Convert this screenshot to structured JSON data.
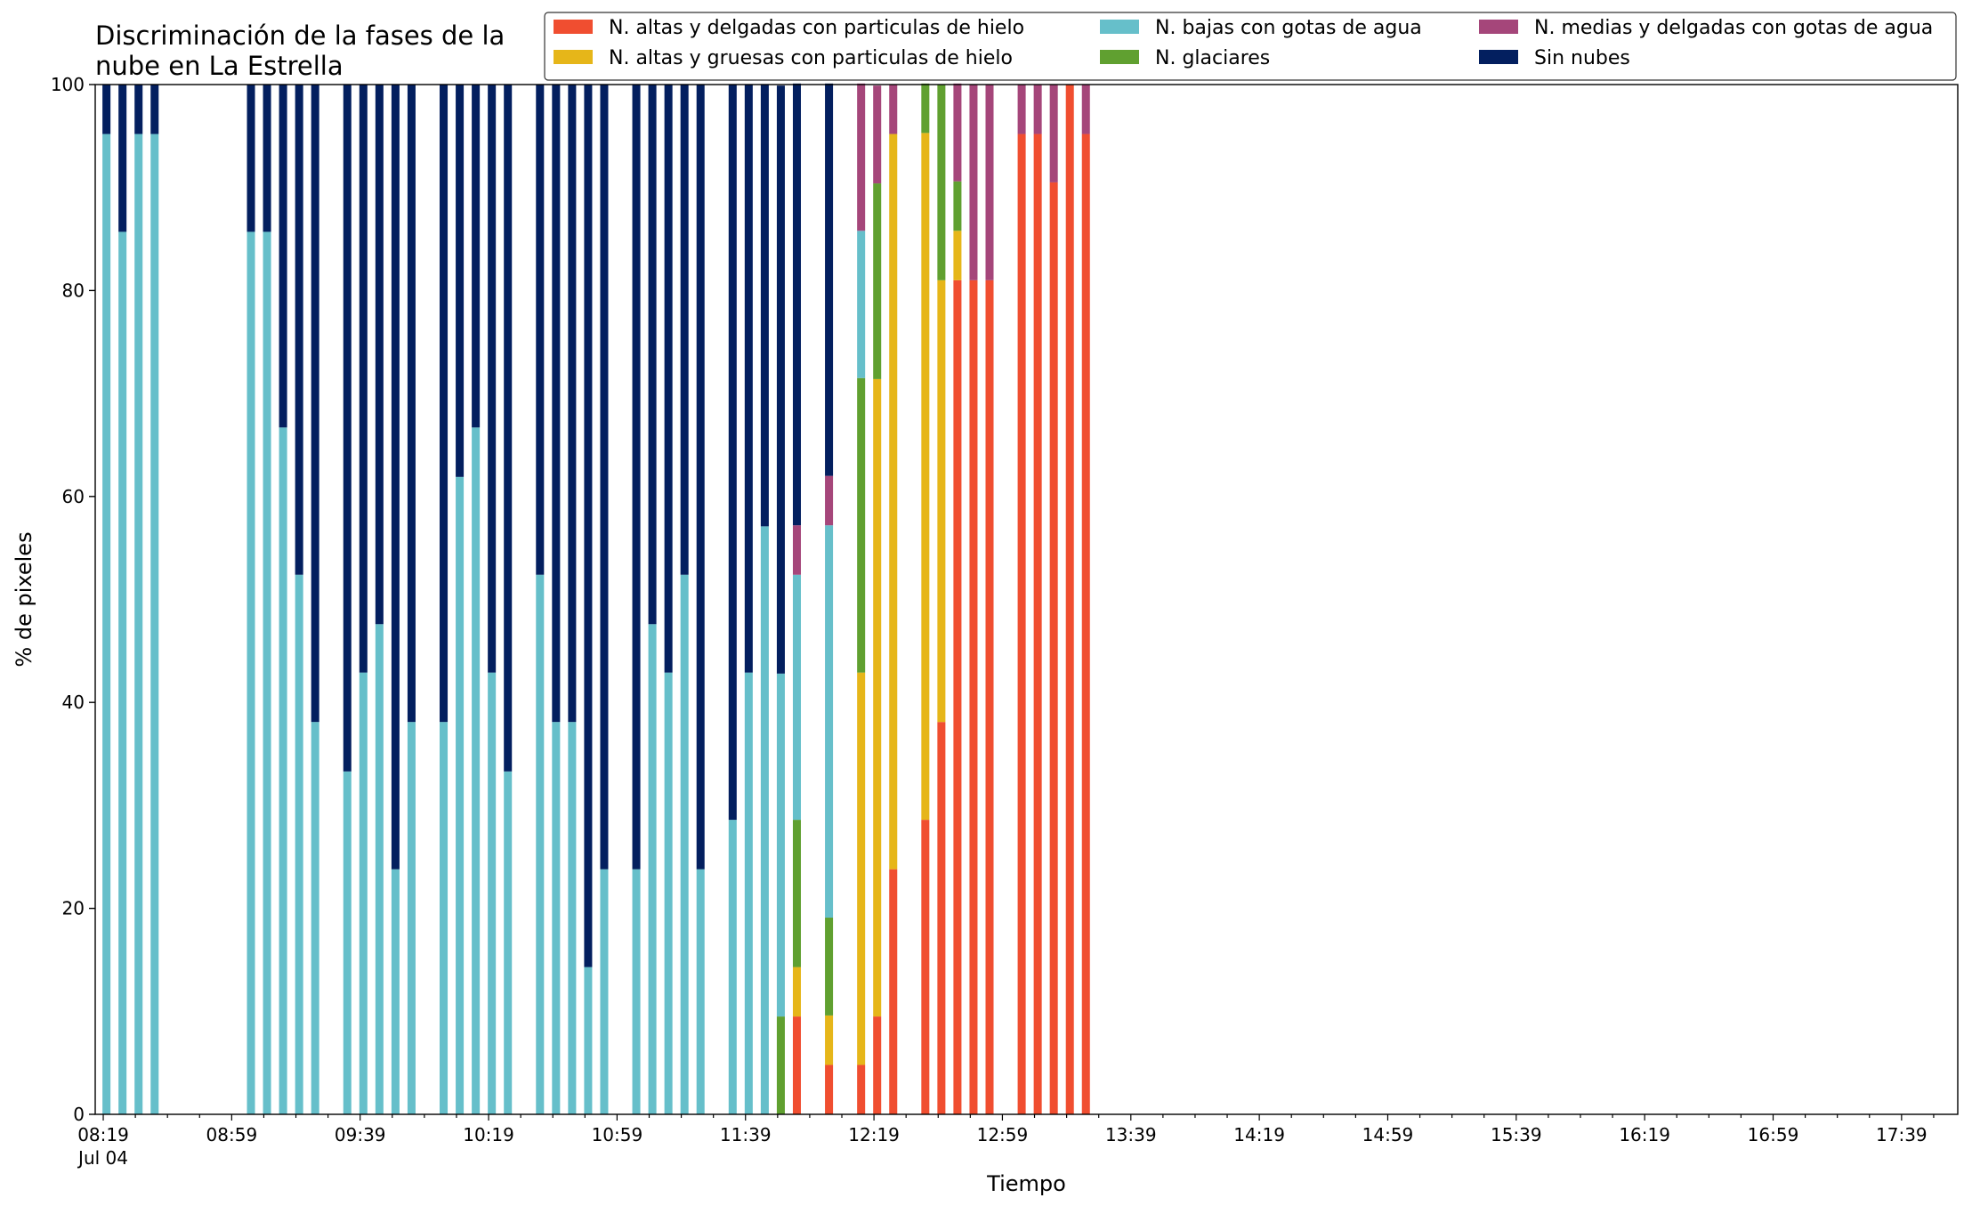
{
  "chart_data": {
    "type": "bar",
    "stacked": true,
    "title_lines": [
      "Discriminación de la fases de la",
      "nube en La Estrella"
    ],
    "xlabel": "Tiempo",
    "ylabel": "% de pixeles",
    "ylim": [
      0,
      100
    ],
    "yticks": [
      "0",
      "20",
      "40",
      "60",
      "80",
      "100"
    ],
    "xtick_labels": [
      "08:19",
      "08:59",
      "09:39",
      "10:19",
      "10:59",
      "11:39",
      "12:19",
      "12:59",
      "13:39",
      "14:19",
      "14:59",
      "15:39",
      "16:19",
      "16:59",
      "17:39"
    ],
    "x_date_label": "Jul 04",
    "grid": false,
    "legend_position": "top-right",
    "legend": [
      "N. altas y delgadas con particulas de hielo",
      "N. bajas con gotas de agua",
      "N. medias y delgadas con gotas de agua",
      "N. altas y gruesas con particulas de hielo",
      "N. glaciares",
      "Sin nubes"
    ],
    "series_colors": {
      "altas_delgadas": "#f04e30",
      "altas_gruesas": "#e6b619",
      "glaciares": "#60a030",
      "bajas": "#66bfca",
      "medias": "#a5467a",
      "sin_nubes": "#031f5f"
    },
    "times": [
      "08:19",
      "08:24",
      "08:29",
      "08:34",
      "08:39",
      "08:44",
      "08:49",
      "08:54",
      "08:59",
      "09:04",
      "09:09",
      "09:14",
      "09:19",
      "09:24",
      "09:29",
      "09:34",
      "09:39",
      "09:44",
      "09:49",
      "09:54",
      "09:59",
      "10:04",
      "10:09",
      "10:14",
      "10:19",
      "10:24",
      "10:29",
      "10:34",
      "10:39",
      "10:44",
      "10:49",
      "10:54",
      "10:59",
      "11:04",
      "11:09",
      "11:14",
      "11:19",
      "11:24",
      "11:29",
      "11:34",
      "11:39",
      "11:44",
      "11:49",
      "11:54",
      "11:59",
      "12:04",
      "12:09",
      "12:14",
      "12:19",
      "12:24",
      "12:29",
      "12:34",
      "12:39",
      "12:44",
      "12:49",
      "12:54",
      "12:59",
      "13:04",
      "13:09",
      "13:14",
      "13:19",
      "13:24",
      "13:29",
      "13:34",
      "13:39",
      "13:44",
      "13:49",
      "13:54",
      "13:59",
      "14:04",
      "14:09",
      "14:14",
      "14:19",
      "14:24",
      "14:29",
      "14:34",
      "14:39",
      "14:44",
      "14:49",
      "14:54",
      "14:59",
      "15:04",
      "15:09",
      "15:14",
      "15:19",
      "15:24",
      "15:29",
      "15:34",
      "15:39",
      "15:44",
      "15:49",
      "15:54",
      "15:59",
      "16:04",
      "16:09",
      "16:14",
      "16:19",
      "16:24",
      "16:29",
      "16:34",
      "16:39",
      "16:44",
      "16:49",
      "16:54",
      "16:59",
      "17:04",
      "17:09",
      "17:14",
      "17:19",
      "17:24",
      "17:29",
      "17:34",
      "17:39",
      "17:44",
      "17:49",
      "17:54"
    ],
    "order": [
      "altas_delgadas",
      "altas_gruesas",
      "glaciares",
      "bajas",
      "medias",
      "sin_nubes"
    ],
    "bars": [
      {
        "time": "08:20",
        "altas_delgadas": 0,
        "altas_gruesas": 0,
        "glaciares": 0,
        "bajas": 95.2,
        "medias": 0,
        "sin_nubes": 4.8
      },
      {
        "time": "08:25",
        "altas_delgadas": 0,
        "altas_gruesas": 0,
        "glaciares": 0,
        "bajas": 85.7,
        "medias": 0,
        "sin_nubes": 14.3
      },
      {
        "time": "08:30",
        "altas_delgadas": 0,
        "altas_gruesas": 0,
        "glaciares": 0,
        "bajas": 95.2,
        "medias": 0,
        "sin_nubes": 4.8
      },
      {
        "time": "08:35",
        "altas_delgadas": 0,
        "altas_gruesas": 0,
        "glaciares": 0,
        "bajas": 95.2,
        "medias": 0,
        "sin_nubes": 4.8
      },
      {
        "time": "09:05",
        "altas_delgadas": 0,
        "altas_gruesas": 0,
        "glaciares": 0,
        "bajas": 85.7,
        "medias": 0,
        "sin_nubes": 14.3
      },
      {
        "time": "09:10",
        "altas_delgadas": 0,
        "altas_gruesas": 0,
        "glaciares": 0,
        "bajas": 85.7,
        "medias": 0,
        "sin_nubes": 14.3
      },
      {
        "time": "09:15",
        "altas_delgadas": 0,
        "altas_gruesas": 0,
        "glaciares": 0,
        "bajas": 66.7,
        "medias": 0,
        "sin_nubes": 33.3
      },
      {
        "time": "09:20",
        "altas_delgadas": 0,
        "altas_gruesas": 0,
        "glaciares": 0,
        "bajas": 52.4,
        "medias": 0,
        "sin_nubes": 47.6
      },
      {
        "time": "09:25",
        "altas_delgadas": 0,
        "altas_gruesas": 0,
        "glaciares": 0,
        "bajas": 38.1,
        "medias": 0,
        "sin_nubes": 61.9
      },
      {
        "time": "09:35",
        "altas_delgadas": 0,
        "altas_gruesas": 0,
        "glaciares": 0,
        "bajas": 33.3,
        "medias": 0,
        "sin_nubes": 66.7
      },
      {
        "time": "09:40",
        "altas_delgadas": 0,
        "altas_gruesas": 0,
        "glaciares": 0,
        "bajas": 42.9,
        "medias": 0,
        "sin_nubes": 57.1
      },
      {
        "time": "09:45",
        "altas_delgadas": 0,
        "altas_gruesas": 0,
        "glaciares": 0,
        "bajas": 47.6,
        "medias": 0,
        "sin_nubes": 52.4
      },
      {
        "time": "09:50",
        "altas_delgadas": 0,
        "altas_gruesas": 0,
        "glaciares": 0,
        "bajas": 23.8,
        "medias": 0,
        "sin_nubes": 76.2
      },
      {
        "time": "09:55",
        "altas_delgadas": 0,
        "altas_gruesas": 0,
        "glaciares": 0,
        "bajas": 38.1,
        "medias": 0,
        "sin_nubes": 61.9
      },
      {
        "time": "10:05",
        "altas_delgadas": 0,
        "altas_gruesas": 0,
        "glaciares": 0,
        "bajas": 38.1,
        "medias": 0,
        "sin_nubes": 61.9
      },
      {
        "time": "10:10",
        "altas_delgadas": 0,
        "altas_gruesas": 0,
        "glaciares": 0,
        "bajas": 61.9,
        "medias": 0,
        "sin_nubes": 38.1
      },
      {
        "time": "10:15",
        "altas_delgadas": 0,
        "altas_gruesas": 0,
        "glaciares": 0,
        "bajas": 66.7,
        "medias": 0,
        "sin_nubes": 33.3
      },
      {
        "time": "10:20",
        "altas_delgadas": 0,
        "altas_gruesas": 0,
        "glaciares": 0,
        "bajas": 42.9,
        "medias": 0,
        "sin_nubes": 57.1
      },
      {
        "time": "10:25",
        "altas_delgadas": 0,
        "altas_gruesas": 0,
        "glaciares": 0,
        "bajas": 33.3,
        "medias": 0,
        "sin_nubes": 66.7
      },
      {
        "time": "10:35",
        "altas_delgadas": 0,
        "altas_gruesas": 0,
        "glaciares": 0,
        "bajas": 52.4,
        "medias": 0,
        "sin_nubes": 47.6
      },
      {
        "time": "10:40",
        "altas_delgadas": 0,
        "altas_gruesas": 0,
        "glaciares": 0,
        "bajas": 38.1,
        "medias": 0,
        "sin_nubes": 61.9
      },
      {
        "time": "10:45",
        "altas_delgadas": 0,
        "altas_gruesas": 0,
        "glaciares": 0,
        "bajas": 38.1,
        "medias": 0,
        "sin_nubes": 61.9
      },
      {
        "time": "10:50",
        "altas_delgadas": 0,
        "altas_gruesas": 0,
        "glaciares": 0,
        "bajas": 14.3,
        "medias": 0,
        "sin_nubes": 85.7
      },
      {
        "time": "10:55",
        "altas_delgadas": 0,
        "altas_gruesas": 0,
        "glaciares": 0,
        "bajas": 23.8,
        "medias": 0,
        "sin_nubes": 76.2
      },
      {
        "time": "11:05",
        "altas_delgadas": 0,
        "altas_gruesas": 0,
        "glaciares": 0,
        "bajas": 23.8,
        "medias": 0,
        "sin_nubes": 76.2
      },
      {
        "time": "11:10",
        "altas_delgadas": 0,
        "altas_gruesas": 0,
        "glaciares": 0,
        "bajas": 47.6,
        "medias": 0,
        "sin_nubes": 52.4
      },
      {
        "time": "11:15",
        "altas_delgadas": 0,
        "altas_gruesas": 0,
        "glaciares": 0,
        "bajas": 42.9,
        "medias": 0,
        "sin_nubes": 57.1
      },
      {
        "time": "11:20",
        "altas_delgadas": 0,
        "altas_gruesas": 0,
        "glaciares": 0,
        "bajas": 52.4,
        "medias": 0,
        "sin_nubes": 47.6
      },
      {
        "time": "11:25",
        "altas_delgadas": 0,
        "altas_gruesas": 0,
        "glaciares": 0,
        "bajas": 23.8,
        "medias": 0,
        "sin_nubes": 76.2
      },
      {
        "time": "11:35",
        "altas_delgadas": 0,
        "altas_gruesas": 0,
        "glaciares": 0,
        "bajas": 28.6,
        "medias": 0,
        "sin_nubes": 71.4
      },
      {
        "time": "11:40",
        "altas_delgadas": 0,
        "altas_gruesas": 0,
        "glaciares": 0,
        "bajas": 42.9,
        "medias": 0,
        "sin_nubes": 57.1
      },
      {
        "time": "11:45",
        "altas_delgadas": 0,
        "altas_gruesas": 0,
        "glaciares": 0,
        "bajas": 57.1,
        "medias": 0,
        "sin_nubes": 42.9
      },
      {
        "time": "11:50",
        "altas_delgadas": 0,
        "altas_gruesas": 0,
        "glaciares": 9.5,
        "bajas": 33.3,
        "medias": 0,
        "sin_nubes": 57.1
      },
      {
        "time": "11:55",
        "altas_delgadas": 9.5,
        "altas_gruesas": 4.8,
        "glaciares": 14.3,
        "bajas": 23.8,
        "medias": 4.8,
        "sin_nubes": 42.9
      },
      {
        "time": "12:05",
        "altas_delgadas": 4.8,
        "altas_gruesas": 4.8,
        "glaciares": 9.5,
        "bajas": 38.1,
        "medias": 4.8,
        "sin_nubes": 38.1
      },
      {
        "time": "12:15",
        "altas_delgadas": 4.8,
        "altas_gruesas": 38.1,
        "glaciares": 28.6,
        "bajas": 14.3,
        "medias": 14.3,
        "sin_nubes": 0
      },
      {
        "time": "12:20",
        "altas_delgadas": 9.5,
        "altas_gruesas": 61.9,
        "glaciares": 19.0,
        "bajas": 0,
        "medias": 9.5,
        "sin_nubes": 0
      },
      {
        "time": "12:25",
        "altas_delgadas": 23.8,
        "altas_gruesas": 71.4,
        "glaciares": 0,
        "bajas": 0,
        "medias": 4.8,
        "sin_nubes": 0
      },
      {
        "time": "12:35",
        "altas_delgadas": 28.6,
        "altas_gruesas": 66.7,
        "glaciares": 4.8,
        "bajas": 0,
        "medias": 0,
        "sin_nubes": 0
      },
      {
        "time": "12:40",
        "altas_delgadas": 38.1,
        "altas_gruesas": 42.9,
        "glaciares": 19.0,
        "bajas": 0,
        "medias": 0,
        "sin_nubes": 0
      },
      {
        "time": "12:45",
        "altas_delgadas": 81.0,
        "altas_gruesas": 4.8,
        "glaciares": 4.8,
        "bajas": 0,
        "medias": 9.5,
        "sin_nubes": 0
      },
      {
        "time": "12:50",
        "altas_delgadas": 81.0,
        "altas_gruesas": 0,
        "glaciares": 0,
        "bajas": 0,
        "medias": 19.0,
        "sin_nubes": 0
      },
      {
        "time": "12:55",
        "altas_delgadas": 81.0,
        "altas_gruesas": 0,
        "glaciares": 0,
        "bajas": 0,
        "medias": 19.0,
        "sin_nubes": 0
      },
      {
        "time": "13:05",
        "altas_delgadas": 95.2,
        "altas_gruesas": 0,
        "glaciares": 0,
        "bajas": 0,
        "medias": 4.8,
        "sin_nubes": 0
      },
      {
        "time": "13:10",
        "altas_delgadas": 95.2,
        "altas_gruesas": 0,
        "glaciares": 0,
        "bajas": 0,
        "medias": 4.8,
        "sin_nubes": 0
      },
      {
        "time": "13:15",
        "altas_delgadas": 90.5,
        "altas_gruesas": 0,
        "glaciares": 0,
        "bajas": 0,
        "medias": 9.5,
        "sin_nubes": 0
      },
      {
        "time": "13:20",
        "altas_delgadas": 100,
        "altas_gruesas": 0,
        "glaciares": 0,
        "bajas": 0,
        "medias": 0,
        "sin_nubes": 0
      },
      {
        "time": "13:25",
        "altas_delgadas": 95.2,
        "altas_gruesas": 0,
        "glaciares": 0,
        "bajas": 0,
        "medias": 4.8,
        "sin_nubes": 0
      }
    ]
  }
}
